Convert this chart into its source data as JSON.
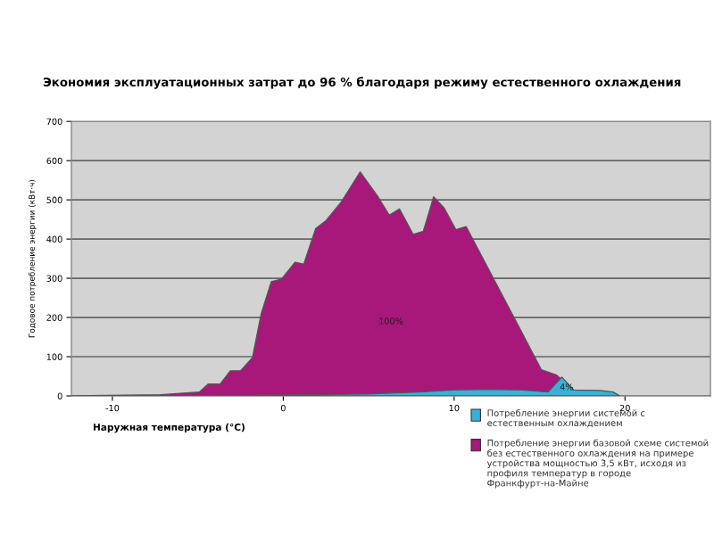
{
  "chart_data": {
    "type": "area",
    "title": "Экономия эксплуатационных затрат до 96 % благодаря режиму естественного охлаждения",
    "xlabel": "Наружная температура (°C)",
    "ylabel": "Годовое потребление энергии (кВт·ч)",
    "xlim": [
      -12.4,
      25
    ],
    "xticks": [
      -10,
      0,
      10,
      20
    ],
    "ylim": [
      0,
      700
    ],
    "yticks": [
      0,
      100,
      200,
      300,
      400,
      500,
      600,
      700
    ],
    "grid": "y",
    "legend": "bottom right",
    "series": [
      {
        "name": "Потребление энергии базовой схеме системой без естественного охлаждения на примере устройства мощностью 3,5 кВт, исходя из профиля температур в городе Франкфурт-на-Майне",
        "color": "#a8177a",
        "x": [
          -12.4,
          -7.2,
          -4.9,
          -4.4,
          -3.7,
          -3.1,
          -2.5,
          -1.8,
          -1.3,
          -0.7,
          -0.1,
          0.7,
          1.2,
          1.9,
          2.5,
          3.4,
          4.5,
          5.5,
          6.2,
          6.8,
          7.6,
          8.2,
          8.8,
          9.4,
          10.1,
          10.7,
          11.4,
          12.5,
          13.6,
          15.1,
          16.0,
          17.0,
          17.5,
          18.0
        ],
        "values": [
          0,
          3,
          10,
          30,
          30,
          64,
          64,
          98,
          208,
          291,
          298,
          341,
          336,
          427,
          447,
          495,
          571,
          511,
          461,
          477,
          412,
          420,
          508,
          480,
          424,
          432,
          374,
          283,
          192,
          67,
          53,
          14,
          5,
          0
        ]
      },
      {
        "name": "Потребление энергии системой с естественным охлаждением",
        "color": "#3ab0d8",
        "x": [
          -7,
          0,
          5,
          8,
          10,
          12,
          14,
          15.5,
          16.3,
          17,
          18.5,
          19.3,
          19.7
        ],
        "values": [
          0,
          2,
          5,
          10,
          15,
          17,
          15,
          10,
          48,
          15,
          14,
          10,
          0
        ]
      }
    ],
    "annotations": [
      "100%",
      "4%"
    ]
  }
}
